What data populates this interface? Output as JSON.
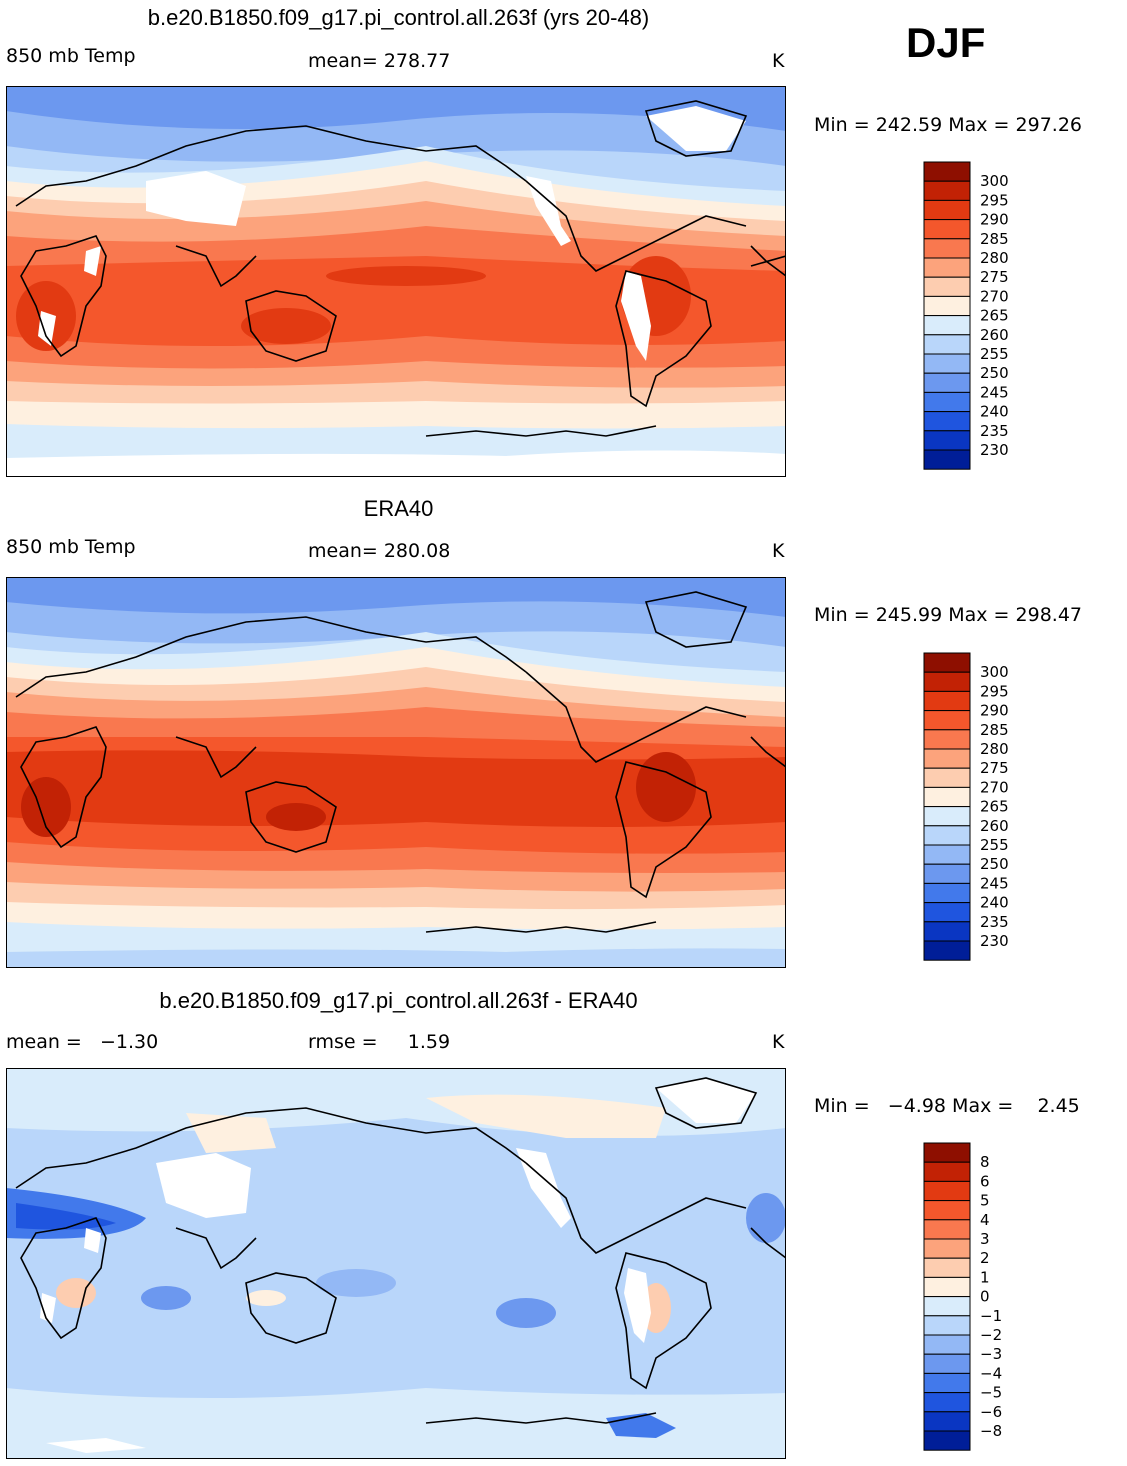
{
  "season": "DJF",
  "colors": {
    "warm": [
      "#fef0e0",
      "#fdcdb0",
      "#fca37c",
      "#f9784f",
      "#f4572c",
      "#e23a12",
      "#c22205",
      "#8e0f00"
    ],
    "cool": [
      "#d9ecfb",
      "#b9d6fa",
      "#93b8f5",
      "#6c98ef",
      "#4279eb",
      "#1f55df",
      "#0a36c2",
      "#001e98",
      "#000c6a"
    ],
    "land_outline": "#000000",
    "missing": "#ffffff"
  },
  "panels": [
    {
      "title": "b.e20.B1850.f09_g17.pi_control.all.263f (yrs 20-48)",
      "left": "850 mb Temp",
      "center": "mean= 278.77",
      "units": "K",
      "minmax": "Min = 242.59 Max = 297.26",
      "legend_labels": [
        "300",
        "295",
        "290",
        "285",
        "280",
        "275",
        "270",
        "265",
        "260",
        "255",
        "250",
        "245",
        "240",
        "235",
        "230"
      ]
    },
    {
      "title": "ERA40",
      "left": "850 mb Temp",
      "center": "mean= 280.08",
      "units": "K",
      "minmax": "Min = 245.99 Max = 298.47",
      "legend_labels": [
        "300",
        "295",
        "290",
        "285",
        "280",
        "275",
        "270",
        "265",
        "260",
        "255",
        "250",
        "245",
        "240",
        "235",
        "230"
      ]
    },
    {
      "title": "b.e20.B1850.f09_g17.pi_control.all.263f - ERA40",
      "left": "mean =   −1.30",
      "center": "rmse =     1.59",
      "units": "K",
      "minmax": "Min =   −4.98 Max =    2.45",
      "legend_labels": [
        "8",
        "6",
        "5",
        "4",
        "3",
        "2",
        "1",
        "0",
        "−1",
        "−2",
        "−3",
        "−4",
        "−5",
        "−6",
        "−8"
      ]
    }
  ]
}
